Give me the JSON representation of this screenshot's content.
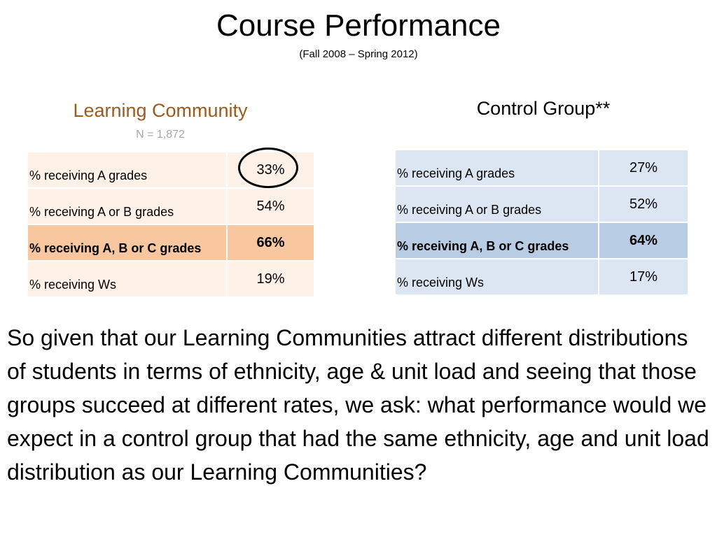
{
  "title": "Course Performance",
  "subtitle": "(Fall 2008 – Spring 2012)",
  "learning_community": {
    "heading": "Learning Community",
    "n": "N = 1,872",
    "rows": [
      {
        "label": "% receiving A grades",
        "value": "33%"
      },
      {
        "label": "% receiving A or B grades",
        "value": "54%"
      },
      {
        "label": "% receiving A, B or C grades",
        "value": "66%"
      },
      {
        "label": "% receiving Ws",
        "value": "19%"
      }
    ]
  },
  "control_group": {
    "heading": "Control Group**",
    "rows": [
      {
        "label": "% receiving A grades",
        "value": "27%"
      },
      {
        "label": "% receiving A or B grades",
        "value": "52%"
      },
      {
        "label": "% receiving A, B or C grades",
        "value": "64%"
      },
      {
        "label": "% receiving Ws",
        "value": "17%"
      }
    ]
  },
  "body_text": "So given that our Learning Communities attract different distributions of students in terms of ethnicity, age & unit load and seeing that those groups succeed at different rates, we ask:  what performance would we expect in a control group that had the same ethnicity, age and unit load distribution as our Learning Communities?",
  "colors": {
    "lc_heading": "#9c5a1e",
    "lc_row": "#fdf1e8",
    "lc_highlight": "#f8c7a0",
    "cg_row": "#dce6f2",
    "cg_highlight": "#b8cce4"
  }
}
